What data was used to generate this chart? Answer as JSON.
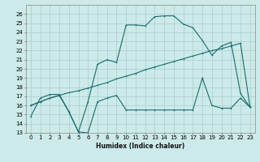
{
  "bg_color": "#cceaea",
  "grid_color": "#aacccc",
  "line_color": "#1a6b6b",
  "xlabel": "Humidex (Indice chaleur)",
  "xlim": [
    -0.5,
    23.5
  ],
  "ylim": [
    13,
    27
  ],
  "yticks": [
    13,
    14,
    15,
    16,
    17,
    18,
    19,
    20,
    21,
    22,
    23,
    24,
    25,
    26
  ],
  "xticks": [
    0,
    1,
    2,
    3,
    4,
    5,
    6,
    7,
    8,
    9,
    10,
    11,
    12,
    13,
    14,
    15,
    16,
    17,
    18,
    19,
    20,
    21,
    22,
    23
  ],
  "line1_x": [
    0,
    1,
    2,
    3,
    4,
    5,
    6,
    7,
    8,
    9,
    10,
    11,
    12,
    13,
    14,
    15,
    16,
    17,
    18,
    19,
    20,
    21,
    22,
    23
  ],
  "line1_y": [
    14.8,
    16.8,
    17.2,
    17.2,
    15.3,
    13.1,
    16.4,
    20.5,
    21.0,
    20.7,
    24.8,
    24.8,
    24.7,
    25.7,
    25.8,
    25.8,
    24.9,
    24.5,
    23.1,
    21.5,
    22.5,
    22.9,
    17.3,
    15.8
  ],
  "line2_x": [
    0,
    1,
    2,
    3,
    4,
    5,
    6,
    7,
    8,
    9,
    10,
    11,
    12,
    13,
    14,
    15,
    16,
    17,
    18,
    19,
    20,
    21,
    22,
    23
  ],
  "line2_y": [
    16.0,
    16.4,
    16.8,
    17.1,
    17.4,
    17.6,
    17.9,
    18.2,
    18.5,
    18.9,
    19.2,
    19.5,
    19.9,
    20.2,
    20.5,
    20.8,
    21.1,
    21.4,
    21.7,
    22.0,
    22.2,
    22.5,
    22.8,
    15.8
  ],
  "line3_x": [
    0,
    1,
    2,
    3,
    4,
    5,
    6,
    7,
    8,
    9,
    10,
    11,
    12,
    13,
    14,
    15,
    16,
    17,
    18,
    19,
    20,
    21,
    22,
    23
  ],
  "line3_y": [
    16.0,
    16.4,
    16.8,
    17.1,
    15.3,
    13.1,
    13.0,
    16.4,
    16.8,
    17.1,
    15.5,
    15.5,
    15.5,
    15.5,
    15.5,
    15.5,
    15.5,
    15.5,
    19.0,
    16.0,
    15.7,
    15.7,
    16.8,
    15.8
  ]
}
